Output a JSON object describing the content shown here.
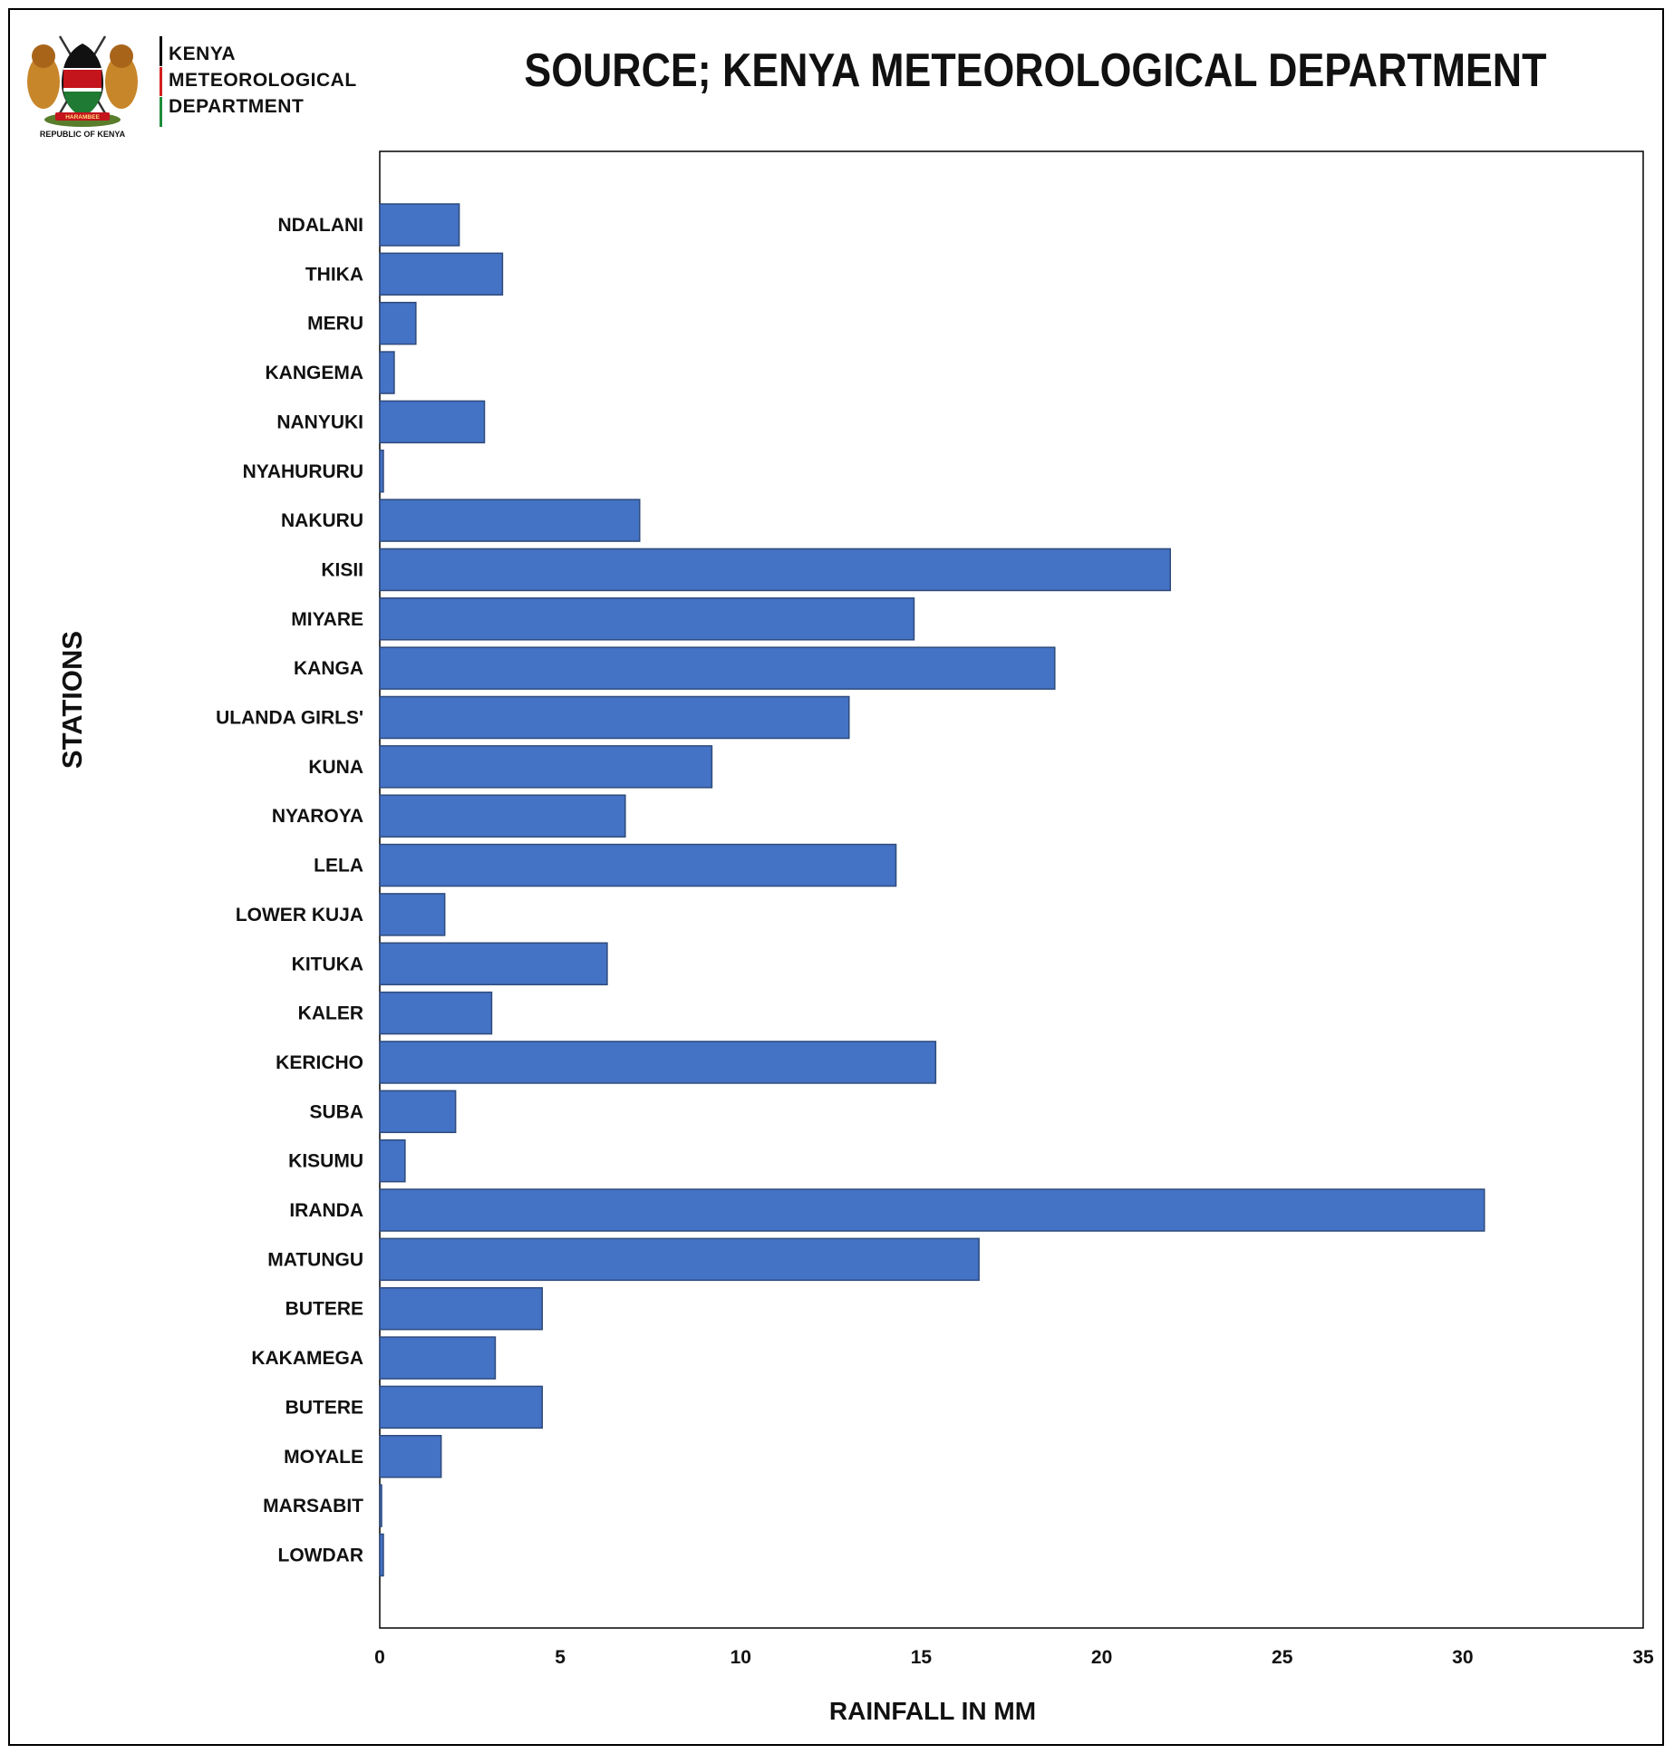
{
  "header": {
    "org_lines": [
      "KENYA",
      "METEOROLOGICAL",
      "DEPARTMENT"
    ],
    "org_bar_colors": [
      "#000000",
      "#d21f1f",
      "#1e8c3a"
    ],
    "seal_caption": "REPUBLIC OF KENYA",
    "seal_motto": "HARAMBEE",
    "logo_icon": "kenya-coat-of-arms-icon",
    "title": "SOURCE; KENYA METEOROLOGICAL DEPARTMENT"
  },
  "chart_data": {
    "type": "bar",
    "orientation": "horizontal",
    "categories": [
      "NDALANI",
      "THIKA",
      "MERU",
      "KANGEMA",
      "NANYUKI",
      "NYAHURURU",
      "NAKURU",
      "KISII",
      "MIYARE",
      "KANGA",
      "ULANDA GIRLS'",
      "KUNA",
      "NYAROYA",
      "LELA",
      "LOWER KUJA",
      "KITUKA",
      "KALER",
      "KERICHO",
      "SUBA",
      "KISUMU",
      "IRANDA",
      "MATUNGU",
      "BUTERE",
      "KAKAMEGA",
      "BUTERE",
      "MOYALE",
      "MARSABIT",
      "LOWDAR"
    ],
    "values": [
      2.2,
      3.4,
      1.0,
      0.4,
      2.9,
      0.1,
      7.2,
      21.9,
      14.8,
      18.7,
      13.0,
      9.2,
      6.8,
      14.3,
      1.8,
      6.3,
      3.1,
      15.4,
      2.1,
      0.7,
      30.6,
      16.6,
      4.5,
      3.2,
      4.5,
      1.7,
      0.05,
      0.1
    ],
    "xlabel": "RAINFALL IN MM",
    "ylabel": "STATIONS",
    "xlim": [
      0,
      35
    ],
    "xticks": [
      0,
      5,
      10,
      15,
      20,
      25,
      30,
      35
    ],
    "grid": false,
    "legend": "none",
    "bar_color": "#4472c4",
    "bar_edge_color": "#2f4b7c"
  }
}
